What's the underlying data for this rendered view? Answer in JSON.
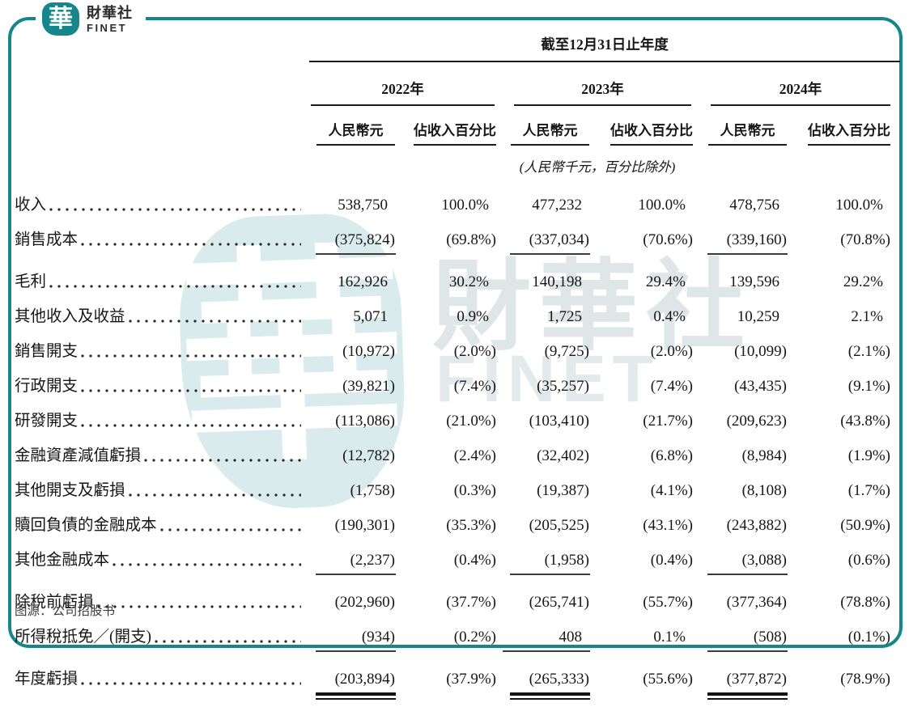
{
  "brand": {
    "logo_char": "華",
    "name_zh": "財華社",
    "name_en": "FINET"
  },
  "watermark": {
    "logo_char": "華",
    "text_zh": "財華社",
    "text_en": "FINET"
  },
  "table": {
    "period_header": "截至12月31日止年度",
    "unit_note": "(人民幣千元，百分比除外)",
    "col_amount": "人民幣元",
    "col_pct": "佔收入百分比",
    "years": [
      "2022年",
      "2023年",
      "2024年"
    ],
    "rows": [
      {
        "label": "收入",
        "values": [
          "538,750",
          "100.0%",
          "477,232",
          "100.0%",
          "478,756",
          "100.0%"
        ],
        "rule": "none"
      },
      {
        "label": "銷售成本",
        "values": [
          "(375,824)",
          "(69.8%)",
          "(337,034)",
          "(70.6%)",
          "(339,160)",
          "(70.8%)"
        ],
        "rule": "single"
      },
      {
        "label": "毛利",
        "values": [
          "162,926",
          "30.2%",
          "140,198",
          "29.4%",
          "139,596",
          "29.2%"
        ],
        "rule": "none"
      },
      {
        "label": "其他收入及收益",
        "values": [
          "5,071",
          "0.9%",
          "1,725",
          "0.4%",
          "10,259",
          "2.1%"
        ],
        "rule": "none"
      },
      {
        "label": "銷售開支",
        "values": [
          "(10,972)",
          "(2.0%)",
          "(9,725)",
          "(2.0%)",
          "(10,099)",
          "(2.1%)"
        ],
        "rule": "none"
      },
      {
        "label": "行政開支",
        "values": [
          "(39,821)",
          "(7.4%)",
          "(35,257)",
          "(7.4%)",
          "(43,435)",
          "(9.1%)"
        ],
        "rule": "none"
      },
      {
        "label": "研發開支",
        "values": [
          "(113,086)",
          "(21.0%)",
          "(103,410)",
          "(21.7%)",
          "(209,623)",
          "(43.8%)"
        ],
        "rule": "none"
      },
      {
        "label": "金融資產減值虧損",
        "values": [
          "(12,782)",
          "(2.4%)",
          "(32,402)",
          "(6.8%)",
          "(8,984)",
          "(1.9%)"
        ],
        "rule": "none"
      },
      {
        "label": "其他開支及虧損",
        "values": [
          "(1,758)",
          "(0.3%)",
          "(19,387)",
          "(4.1%)",
          "(8,108)",
          "(1.7%)"
        ],
        "rule": "none"
      },
      {
        "label": "贖回負債的金融成本",
        "values": [
          "(190,301)",
          "(35.3%)",
          "(205,525)",
          "(43.1%)",
          "(243,882)",
          "(50.9%)"
        ],
        "rule": "none"
      },
      {
        "label": "其他金融成本",
        "values": [
          "(2,237)",
          "(0.4%)",
          "(1,958)",
          "(0.4%)",
          "(3,088)",
          "(0.6%)"
        ],
        "rule": "single"
      },
      {
        "label": "除稅前虧損",
        "values": [
          "(202,960)",
          "(37.7%)",
          "(265,741)",
          "(55.7%)",
          "(377,364)",
          "(78.8%)"
        ],
        "rule": "none"
      },
      {
        "label": "所得稅抵免／(開支)",
        "values": [
          "(934)",
          "(0.2%)",
          "408",
          "0.1%",
          "(508)",
          "(0.1%)"
        ],
        "rule": "single"
      },
      {
        "label": "年度虧損",
        "values": [
          "(203,894)",
          "(37.9%)",
          "(265,333)",
          "(55.6%)",
          "(377,872)",
          "(78.9%)"
        ],
        "rule": "double"
      }
    ]
  },
  "caption": "图源：公司招股书",
  "colors": {
    "teal": "#15878b",
    "rule_dark": "#141414",
    "watermark_teal": "#d9ebed"
  }
}
